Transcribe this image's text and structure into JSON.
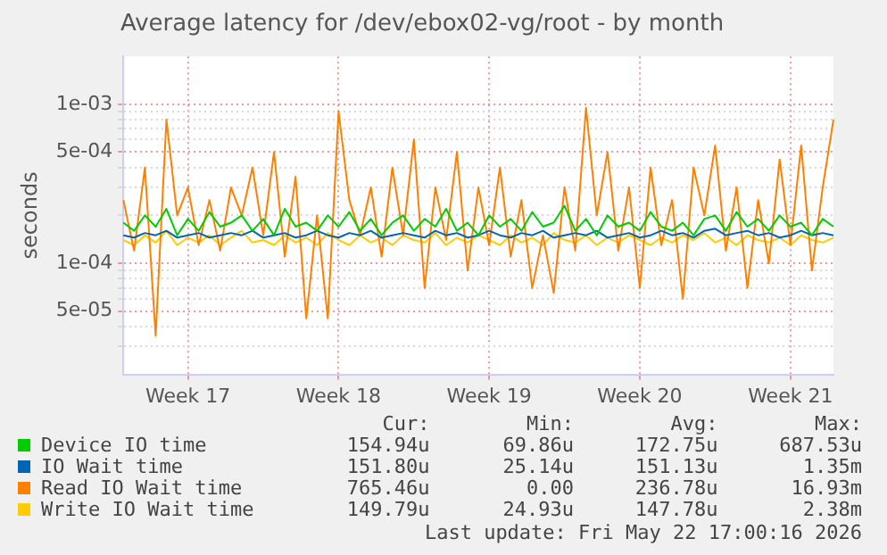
{
  "chart_data": {
    "type": "line",
    "title": "Average latency for /dev/ebox02-vg/root - by month",
    "ylabel": "seconds",
    "log": "y",
    "grid": true,
    "legend": "bottom",
    "marker": "none",
    "line_style": "solid",
    "categories": [
      null,
      null,
      null,
      null,
      null,
      null,
      "Week 17",
      null,
      null,
      null,
      null,
      null,
      null,
      null,
      null,
      null,
      null,
      null,
      null,
      null,
      "Week 18",
      null,
      null,
      null,
      null,
      null,
      null,
      null,
      null,
      null,
      null,
      null,
      null,
      null,
      "Week 19",
      null,
      null,
      null,
      null,
      null,
      null,
      null,
      null,
      null,
      null,
      null,
      null,
      null,
      "Week 20",
      null,
      null,
      null,
      null,
      null,
      null,
      null,
      null,
      null,
      null,
      null,
      null,
      null,
      "Week 21",
      null,
      null,
      null,
      null
    ],
    "ylim": [
      2e-05,
      0.002
    ],
    "yticks": [
      {
        "value": 3e-05,
        "label": null
      },
      {
        "value": 4e-05,
        "label": null
      },
      {
        "value": 5e-05,
        "label": "5e-05"
      },
      {
        "value": 6e-05,
        "label": null
      },
      {
        "value": 7e-05,
        "label": null
      },
      {
        "value": 8e-05,
        "label": null
      },
      {
        "value": 9e-05,
        "label": null
      },
      {
        "value": 0.0001,
        "label": "1e-04"
      },
      {
        "value": 0.0002,
        "label": null
      },
      {
        "value": 0.0003,
        "label": null
      },
      {
        "value": 0.0004,
        "label": null
      },
      {
        "value": 0.0005,
        "label": "5e-04"
      },
      {
        "value": 0.0006,
        "label": null
      },
      {
        "value": 0.0007,
        "label": null
      },
      {
        "value": 0.0008,
        "label": null
      },
      {
        "value": 0.0009,
        "label": null
      },
      {
        "value": 0.001,
        "label": "1e-03"
      }
    ],
    "series": [
      {
        "name": "Device IO time",
        "color": "#00cc00",
        "values": [
          0.00018,
          0.00016,
          0.0002,
          0.00017,
          0.00022,
          0.00015,
          0.00019,
          0.00016,
          0.00021,
          0.00017,
          0.00018,
          0.0002,
          0.00016,
          0.00019,
          0.00015,
          0.00022,
          0.00017,
          0.00018,
          0.00016,
          0.0002,
          0.00017,
          0.00021,
          0.00016,
          0.00019,
          0.00015,
          0.00018,
          0.0002,
          0.00016,
          0.00019,
          0.00017,
          0.00022,
          0.00016,
          0.00018,
          0.00015,
          0.0002,
          0.00017,
          0.00019,
          0.00016,
          0.00021,
          0.00017,
          0.00018,
          0.00023,
          0.00016,
          0.00019,
          0.00015,
          0.0002,
          0.00017,
          0.00018,
          0.00016,
          0.00021,
          0.00017,
          0.00016,
          0.00018,
          0.00015,
          0.00019,
          0.0002,
          0.00016,
          0.00021,
          0.00017,
          0.00019,
          0.00016,
          0.0002,
          0.00017,
          0.00018,
          0.00015,
          0.00019,
          0.00017
        ]
      },
      {
        "name": "IO Wait time",
        "color": "#0066b3",
        "values": [
          0.00015,
          0.000145,
          0.000155,
          0.00015,
          0.00016,
          0.000145,
          0.00015,
          0.000155,
          0.000145,
          0.00015,
          0.000155,
          0.00015,
          0.00016,
          0.000145,
          0.00015,
          0.000155,
          0.000145,
          0.00015,
          0.00016,
          0.00015,
          0.000145,
          0.000155,
          0.00015,
          0.00016,
          0.000145,
          0.00015,
          0.000155,
          0.00015,
          0.000145,
          0.00016,
          0.00015,
          0.000155,
          0.000145,
          0.00015,
          0.00016,
          0.00015,
          0.000145,
          0.000155,
          0.00015,
          0.00016,
          0.000145,
          0.00015,
          0.000155,
          0.00015,
          0.00016,
          0.000145,
          0.00015,
          0.000155,
          0.000145,
          0.00015,
          0.00016,
          0.00015,
          0.000155,
          0.000145,
          0.00016,
          0.000165,
          0.00015,
          0.000155,
          0.00016,
          0.00015,
          0.000155,
          0.000145,
          0.00015,
          0.00016,
          0.00015,
          0.000155,
          0.00015
        ]
      },
      {
        "name": "Read IO Wait time",
        "color": "#ff8000",
        "values": [
          0.00025,
          0.00012,
          0.0004,
          3.5e-05,
          0.0008,
          0.0002,
          0.0003,
          0.00013,
          0.00025,
          0.00012,
          0.0003,
          0.0002,
          0.0004,
          0.00015,
          0.0005,
          0.00011,
          0.00035,
          4.5e-05,
          0.0002,
          4.5e-05,
          0.0009,
          0.00025,
          0.00015,
          0.0003,
          0.00011,
          0.0004,
          0.00015,
          0.0006,
          7e-05,
          0.0003,
          0.00014,
          0.0005,
          9e-05,
          0.0003,
          0.00013,
          0.0004,
          0.00011,
          0.00025,
          7e-05,
          0.00015,
          6.5e-05,
          0.0003,
          0.00012,
          0.00095,
          0.0002,
          0.0005,
          0.00012,
          0.0003,
          7e-05,
          0.0004,
          0.00013,
          0.00025,
          6e-05,
          0.0004,
          0.0002,
          0.00055,
          0.00012,
          0.0003,
          7e-05,
          0.00025,
          0.0001,
          0.00045,
          0.00013,
          0.00055,
          9e-05,
          0.0003,
          0.0008
        ]
      },
      {
        "name": "Write IO Wait time",
        "color": "#ffcc00",
        "values": [
          0.00014,
          0.00013,
          0.00015,
          0.000135,
          0.00016,
          0.00013,
          0.000145,
          0.000135,
          0.00015,
          0.00013,
          0.000145,
          0.00016,
          0.000135,
          0.00014,
          0.00013,
          0.00015,
          0.000135,
          0.000145,
          0.00013,
          0.000155,
          0.00014,
          0.00013,
          0.00015,
          0.000135,
          0.000145,
          0.00013,
          0.00015,
          0.00014,
          0.000135,
          0.000155,
          0.00013,
          0.000145,
          0.000135,
          0.00015,
          0.00014,
          0.00013,
          0.00015,
          0.000135,
          0.000145,
          0.00013,
          0.000155,
          0.00014,
          0.000135,
          0.00015,
          0.00013,
          0.000145,
          0.000135,
          0.00015,
          0.00014,
          0.00013,
          0.000145,
          0.000135,
          0.00015,
          0.00014,
          0.000155,
          0.000135,
          0.000145,
          0.00013,
          0.00015,
          0.00014,
          0.000135,
          0.000145,
          0.00013,
          0.00015,
          0.00014,
          0.000135,
          0.000145
        ]
      }
    ],
    "annotations": [
      "Cur:",
      "Min:",
      "Avg:",
      "Max:",
      "154.94u",
      "69.86u",
      "172.75u",
      "687.53u",
      "151.80u",
      "25.14u",
      "151.13u",
      "1.35m",
      "765.46u",
      "0.00",
      "236.78u",
      "16.93m",
      "149.79u",
      "24.93u",
      "147.78u",
      "2.38m",
      "Last update: Fri May 22 17:00:16 2026"
    ]
  }
}
